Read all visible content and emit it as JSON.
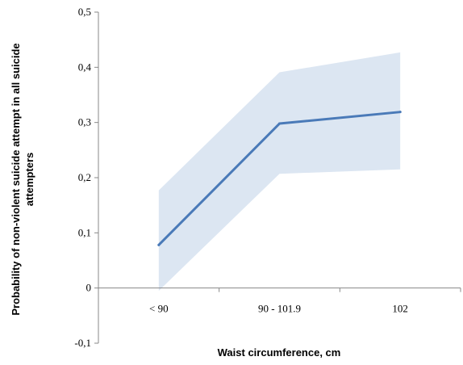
{
  "chart_data": {
    "type": "line",
    "title": "",
    "xlabel": "Waist circumference, cm",
    "ylabel_lines": [
      "Probability of non-violent suicide attempt in all suicide",
      "attempters"
    ],
    "categories": [
      "< 90",
      "90 - 101.9",
      "102"
    ],
    "series": [
      {
        "values": [
          0.078,
          0.298,
          0.319
        ],
        "ci_lower": [
          -0.005,
          0.207,
          0.215
        ],
        "ci_upper": [
          0.177,
          0.391,
          0.427
        ]
      }
    ],
    "ylim": [
      -0.1,
      0.5
    ],
    "yticks": [
      -0.1,
      0,
      0.1,
      0.2,
      0.3,
      0.4,
      0.5
    ],
    "ytick_labels": [
      "-0,1",
      "0",
      "0,1",
      "0,2",
      "0,3",
      "0,4",
      "0,5"
    ],
    "grid": false,
    "legend": "none",
    "colors": {
      "line": "#4a7ab8",
      "band": "#dce6f2",
      "axis": "#888888"
    }
  }
}
